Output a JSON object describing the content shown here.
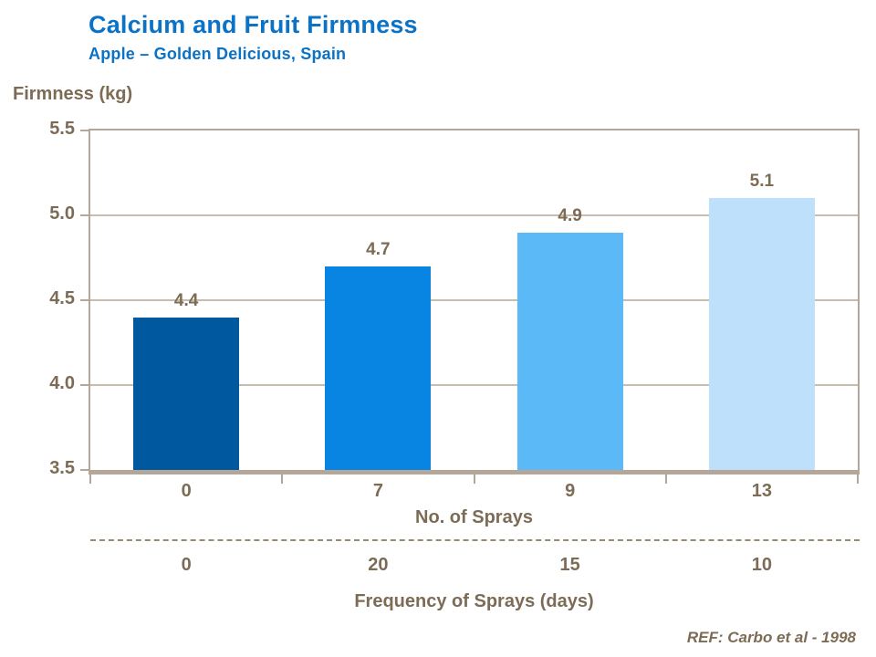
{
  "header": {
    "title": "Calcium and Fruit Firmness",
    "subtitle": "Apple – Golden Delicious, Spain"
  },
  "chart_data": {
    "type": "bar",
    "title": "Calcium and Fruit Firmness",
    "subtitle": "Apple – Golden Delicious, Spain",
    "ylabel": "Firmness (kg)",
    "xlabel": "No. of Sprays",
    "categories": [
      "0",
      "7",
      "9",
      "13"
    ],
    "values": [
      4.4,
      4.7,
      4.9,
      5.1
    ],
    "data_labels": [
      "4.4",
      "4.7",
      "4.9",
      "5.1"
    ],
    "ylim": [
      3.5,
      5.5
    ],
    "ytick_step": 0.5,
    "yticks": [
      "5.5",
      "5.0",
      "4.5",
      "4.0",
      "3.5"
    ],
    "grid": true,
    "legend": false,
    "bar_colors": [
      "#00589E",
      "#0885E2",
      "#5CB9F7",
      "#BEE0FA"
    ],
    "secondary_axis": {
      "label": "Frequency of Sprays (days)",
      "values": [
        "0",
        "20",
        "15",
        "10"
      ]
    }
  },
  "footer": {
    "reference": "REF: Carbo et al - 1998"
  },
  "colors": {
    "title_blue": "#0B72C6",
    "text_brown": "#7D6C55",
    "axis_line": "#B4A79A",
    "gridline": "#C8BCAD",
    "dashed_line": "#9A8A74"
  }
}
